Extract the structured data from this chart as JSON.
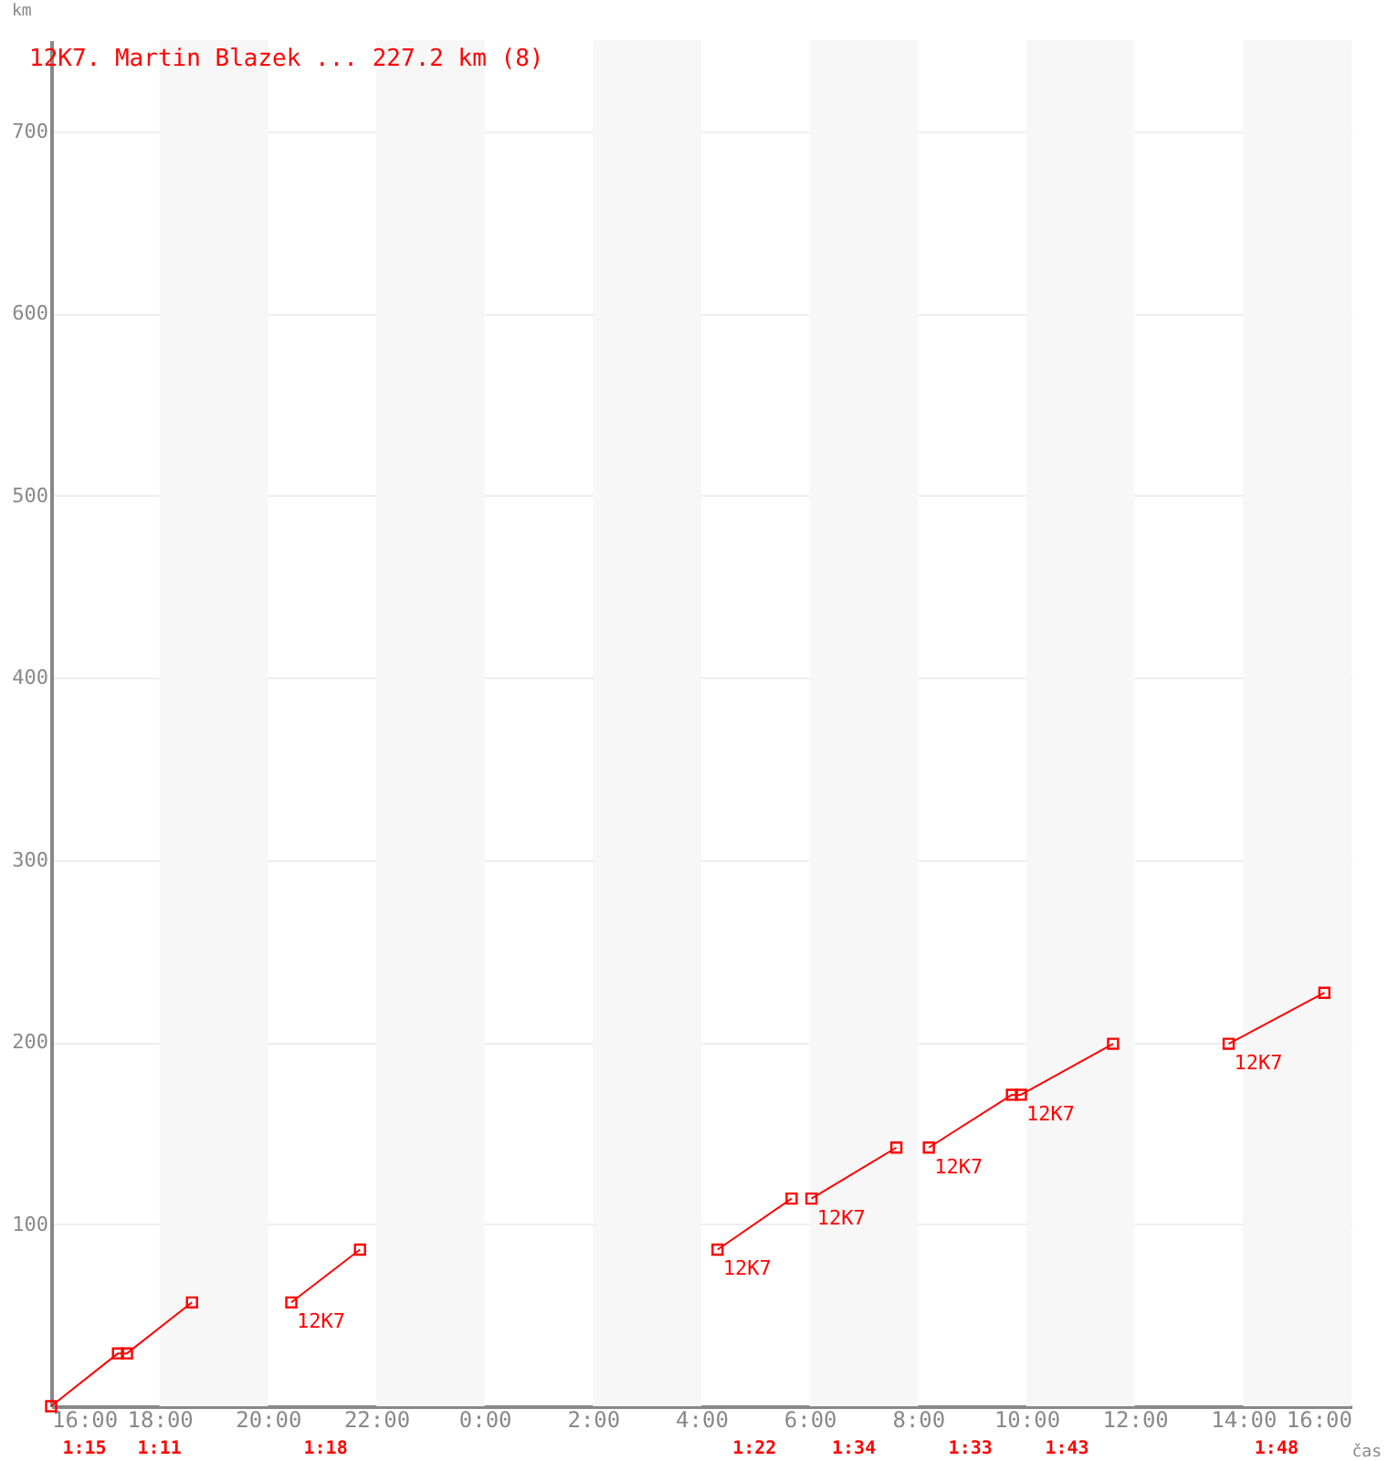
{
  "chart_data": {
    "type": "line",
    "title": "12K7. Martin Blazek ... 227.2 km (8)",
    "xlabel": "čas",
    "ylabel": "km",
    "xlim": [
      "2000-01-01T16:00",
      "2000-01-02T16:00"
    ],
    "ylim": [
      0,
      750
    ],
    "xticks": [
      {
        "value": "2000-01-01T16:00",
        "label": "16:00"
      },
      {
        "value": "2000-01-01T18:00",
        "label": "18:00"
      },
      {
        "value": "2000-01-01T20:00",
        "label": "20:00"
      },
      {
        "value": "2000-01-01T22:00",
        "label": "22:00"
      },
      {
        "value": "2000-01-02T00:00",
        "label": "0:00"
      },
      {
        "value": "2000-01-02T02:00",
        "label": "2:00"
      },
      {
        "value": "2000-01-02T04:00",
        "label": "4:00"
      },
      {
        "value": "2000-01-02T06:00",
        "label": "6:00"
      },
      {
        "value": "2000-01-02T08:00",
        "label": "8:00"
      },
      {
        "value": "2000-01-02T10:00",
        "label": "10:00"
      },
      {
        "value": "2000-01-02T12:00",
        "label": "12:00"
      },
      {
        "value": "2000-01-02T14:00",
        "label": "14:00"
      },
      {
        "value": "2000-01-02T16:00",
        "label": "16:00"
      }
    ],
    "yticks": [
      100,
      200,
      300,
      400,
      500,
      600,
      700
    ],
    "grid": "y",
    "marker": "square",
    "line_style": "solid",
    "series": [
      {
        "color": "#ff0000",
        "x": [
          "2000-01-01T16:00",
          "2000-01-01T17:14",
          "2000-01-01T17:24",
          "2000-01-01T18:36"
        ],
        "values": [
          0,
          29,
          29,
          57
        ]
      },
      {
        "color": "#ff0000",
        "x": [
          "2000-01-01T20:26",
          "2000-01-01T21:42"
        ],
        "values": [
          57,
          86
        ]
      },
      {
        "color": "#ff0000",
        "x": [
          "2000-01-02T04:18",
          "2000-01-02T05:40"
        ],
        "values": [
          86,
          114
        ]
      },
      {
        "color": "#ff0000",
        "x": [
          "2000-01-02T06:02",
          "2000-01-02T07:36"
        ],
        "values": [
          114,
          142
        ]
      },
      {
        "color": "#ff0000",
        "x": [
          "2000-01-02T08:12",
          "2000-01-02T09:44",
          "2000-01-02T09:54",
          "2000-01-02T11:36"
        ],
        "values": [
          142,
          171,
          171,
          199
        ]
      },
      {
        "color": "#ff0000",
        "x": [
          "2000-01-02T13:44",
          "2000-01-02T15:30"
        ],
        "values": [
          199,
          227
        ]
      }
    ],
    "bands": [
      {
        "axis": "x",
        "from": "2000-01-01T18:00",
        "to": "2000-01-01T20:00",
        "color": "#f7f7f7"
      },
      {
        "axis": "x",
        "from": "2000-01-01T22:00",
        "to": "2000-01-02T00:00",
        "color": "#f7f7f7"
      },
      {
        "axis": "x",
        "from": "2000-01-02T02:00",
        "to": "2000-01-02T04:00",
        "color": "#f7f7f7"
      },
      {
        "axis": "x",
        "from": "2000-01-02T06:00",
        "to": "2000-01-02T08:00",
        "color": "#f7f7f7"
      },
      {
        "axis": "x",
        "from": "2000-01-02T10:00",
        "to": "2000-01-02T12:00",
        "color": "#f7f7f7"
      },
      {
        "axis": "x",
        "from": "2000-01-02T14:00",
        "to": "2000-01-02T16:00",
        "color": "#f7f7f7"
      }
    ],
    "annotations": [
      {
        "text": "12K7",
        "x": "2000-01-01T20:26",
        "y": 57
      },
      {
        "text": "12K7",
        "x": "2000-01-02T04:18",
        "y": 86
      },
      {
        "text": "12K7",
        "x": "2000-01-02T06:02",
        "y": 114
      },
      {
        "text": "12K7",
        "x": "2000-01-02T08:12",
        "y": 142
      },
      {
        "text": "12K7",
        "x": "2000-01-02T09:54",
        "y": 171
      },
      {
        "text": "12K7",
        "x": "2000-01-02T13:44",
        "y": 199
      },
      "1:15",
      "1:11",
      "1:18",
      "1:22",
      "1:34",
      "1:33",
      "1:43",
      "1:48"
    ]
  }
}
